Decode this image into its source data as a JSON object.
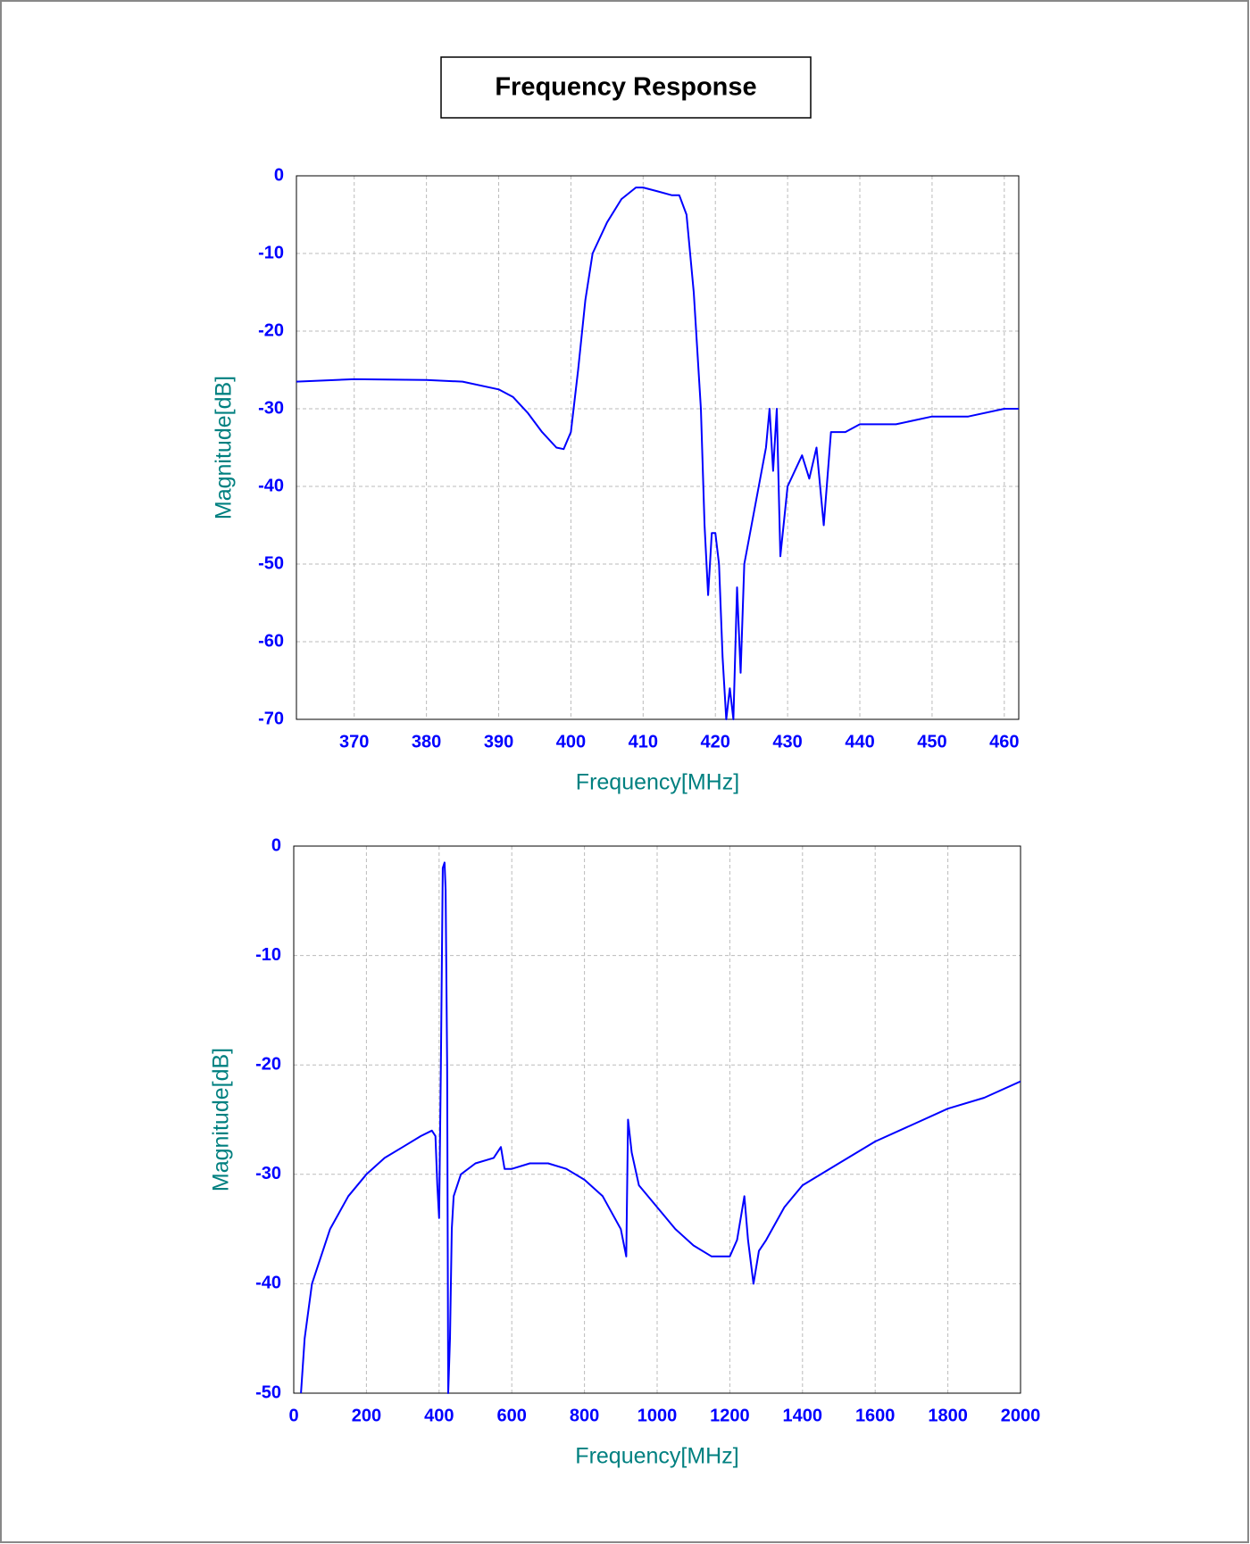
{
  "chart_data": [
    {
      "type": "line",
      "title": "Frequency Response",
      "xlabel": "Frequency[MHz]",
      "ylabel": "Magnitude[dB]",
      "color": "#0000ff",
      "grid": true,
      "xlim": [
        362,
        462
      ],
      "ylim": [
        -70,
        0
      ],
      "xticks": [
        370,
        380,
        390,
        400,
        410,
        420,
        430,
        440,
        450,
        460
      ],
      "yticks": [
        0,
        -10,
        -20,
        -30,
        -40,
        -50,
        -60,
        -70
      ],
      "x": [
        362,
        370,
        380,
        385,
        390,
        392,
        394,
        396,
        398,
        399,
        400,
        401,
        402,
        403,
        405,
        407,
        409,
        410,
        412,
        414,
        415,
        416,
        417,
        418,
        418.5,
        419,
        419.5,
        420,
        420.5,
        421,
        421.5,
        422,
        422.5,
        423,
        423.5,
        424,
        425,
        426,
        427,
        427.5,
        428,
        428.5,
        429,
        430,
        431,
        432,
        433,
        434,
        435,
        436,
        438,
        440,
        445,
        450,
        455,
        460,
        462
      ],
      "values": [
        -26.5,
        -26.2,
        -26.3,
        -26.5,
        -27.5,
        -28.5,
        -30.5,
        -33,
        -35,
        -35.2,
        -33,
        -25,
        -16,
        -10,
        -6,
        -3,
        -1.5,
        -1.5,
        -2,
        -2.5,
        -2.5,
        -5,
        -15,
        -30,
        -45,
        -54,
        -46,
        -46,
        -50,
        -62,
        -70,
        -66,
        -70,
        -53,
        -64,
        -50,
        -45,
        -40,
        -35,
        -30,
        -38,
        -30,
        -49,
        -40,
        -38,
        -36,
        -39,
        -35,
        -45,
        -33,
        -33,
        -32,
        -32,
        -31,
        -31,
        -30,
        -30
      ]
    },
    {
      "type": "line",
      "xlabel": "Frequency[MHz]",
      "ylabel": "Magnitude[dB]",
      "color": "#0000ff",
      "grid": true,
      "xlim": [
        0,
        2000
      ],
      "ylim": [
        -50,
        0
      ],
      "xticks": [
        0,
        200,
        400,
        600,
        800,
        1000,
        1200,
        1400,
        1600,
        1800,
        2000
      ],
      "yticks": [
        0,
        -10,
        -20,
        -30,
        -40,
        -50
      ],
      "x": [
        20,
        30,
        50,
        100,
        150,
        200,
        250,
        300,
        350,
        380,
        390,
        395,
        400,
        405,
        410,
        415,
        418,
        422,
        425,
        430,
        435,
        440,
        460,
        500,
        550,
        570,
        580,
        600,
        650,
        700,
        750,
        800,
        850,
        900,
        915,
        920,
        930,
        950,
        1000,
        1050,
        1100,
        1150,
        1200,
        1220,
        1240,
        1250,
        1265,
        1280,
        1300,
        1350,
        1400,
        1500,
        1600,
        1700,
        1800,
        1900,
        2000
      ],
      "values": [
        -50,
        -45,
        -40,
        -35,
        -32,
        -30,
        -28.5,
        -27.5,
        -26.5,
        -26,
        -26.5,
        -31,
        -34,
        -20,
        -2,
        -1.5,
        -4,
        -20,
        -50,
        -45,
        -35,
        -32,
        -30,
        -29,
        -28.5,
        -27.5,
        -29.5,
        -29.5,
        -29,
        -29,
        -29.5,
        -30.5,
        -32,
        -35,
        -37.5,
        -25,
        -28,
        -31,
        -33,
        -35,
        -36.5,
        -37.5,
        -37.5,
        -36,
        -32,
        -36,
        -40,
        -37,
        -36,
        -33,
        -31,
        -29,
        -27,
        -25.5,
        -24,
        -23,
        -21.5
      ]
    }
  ]
}
